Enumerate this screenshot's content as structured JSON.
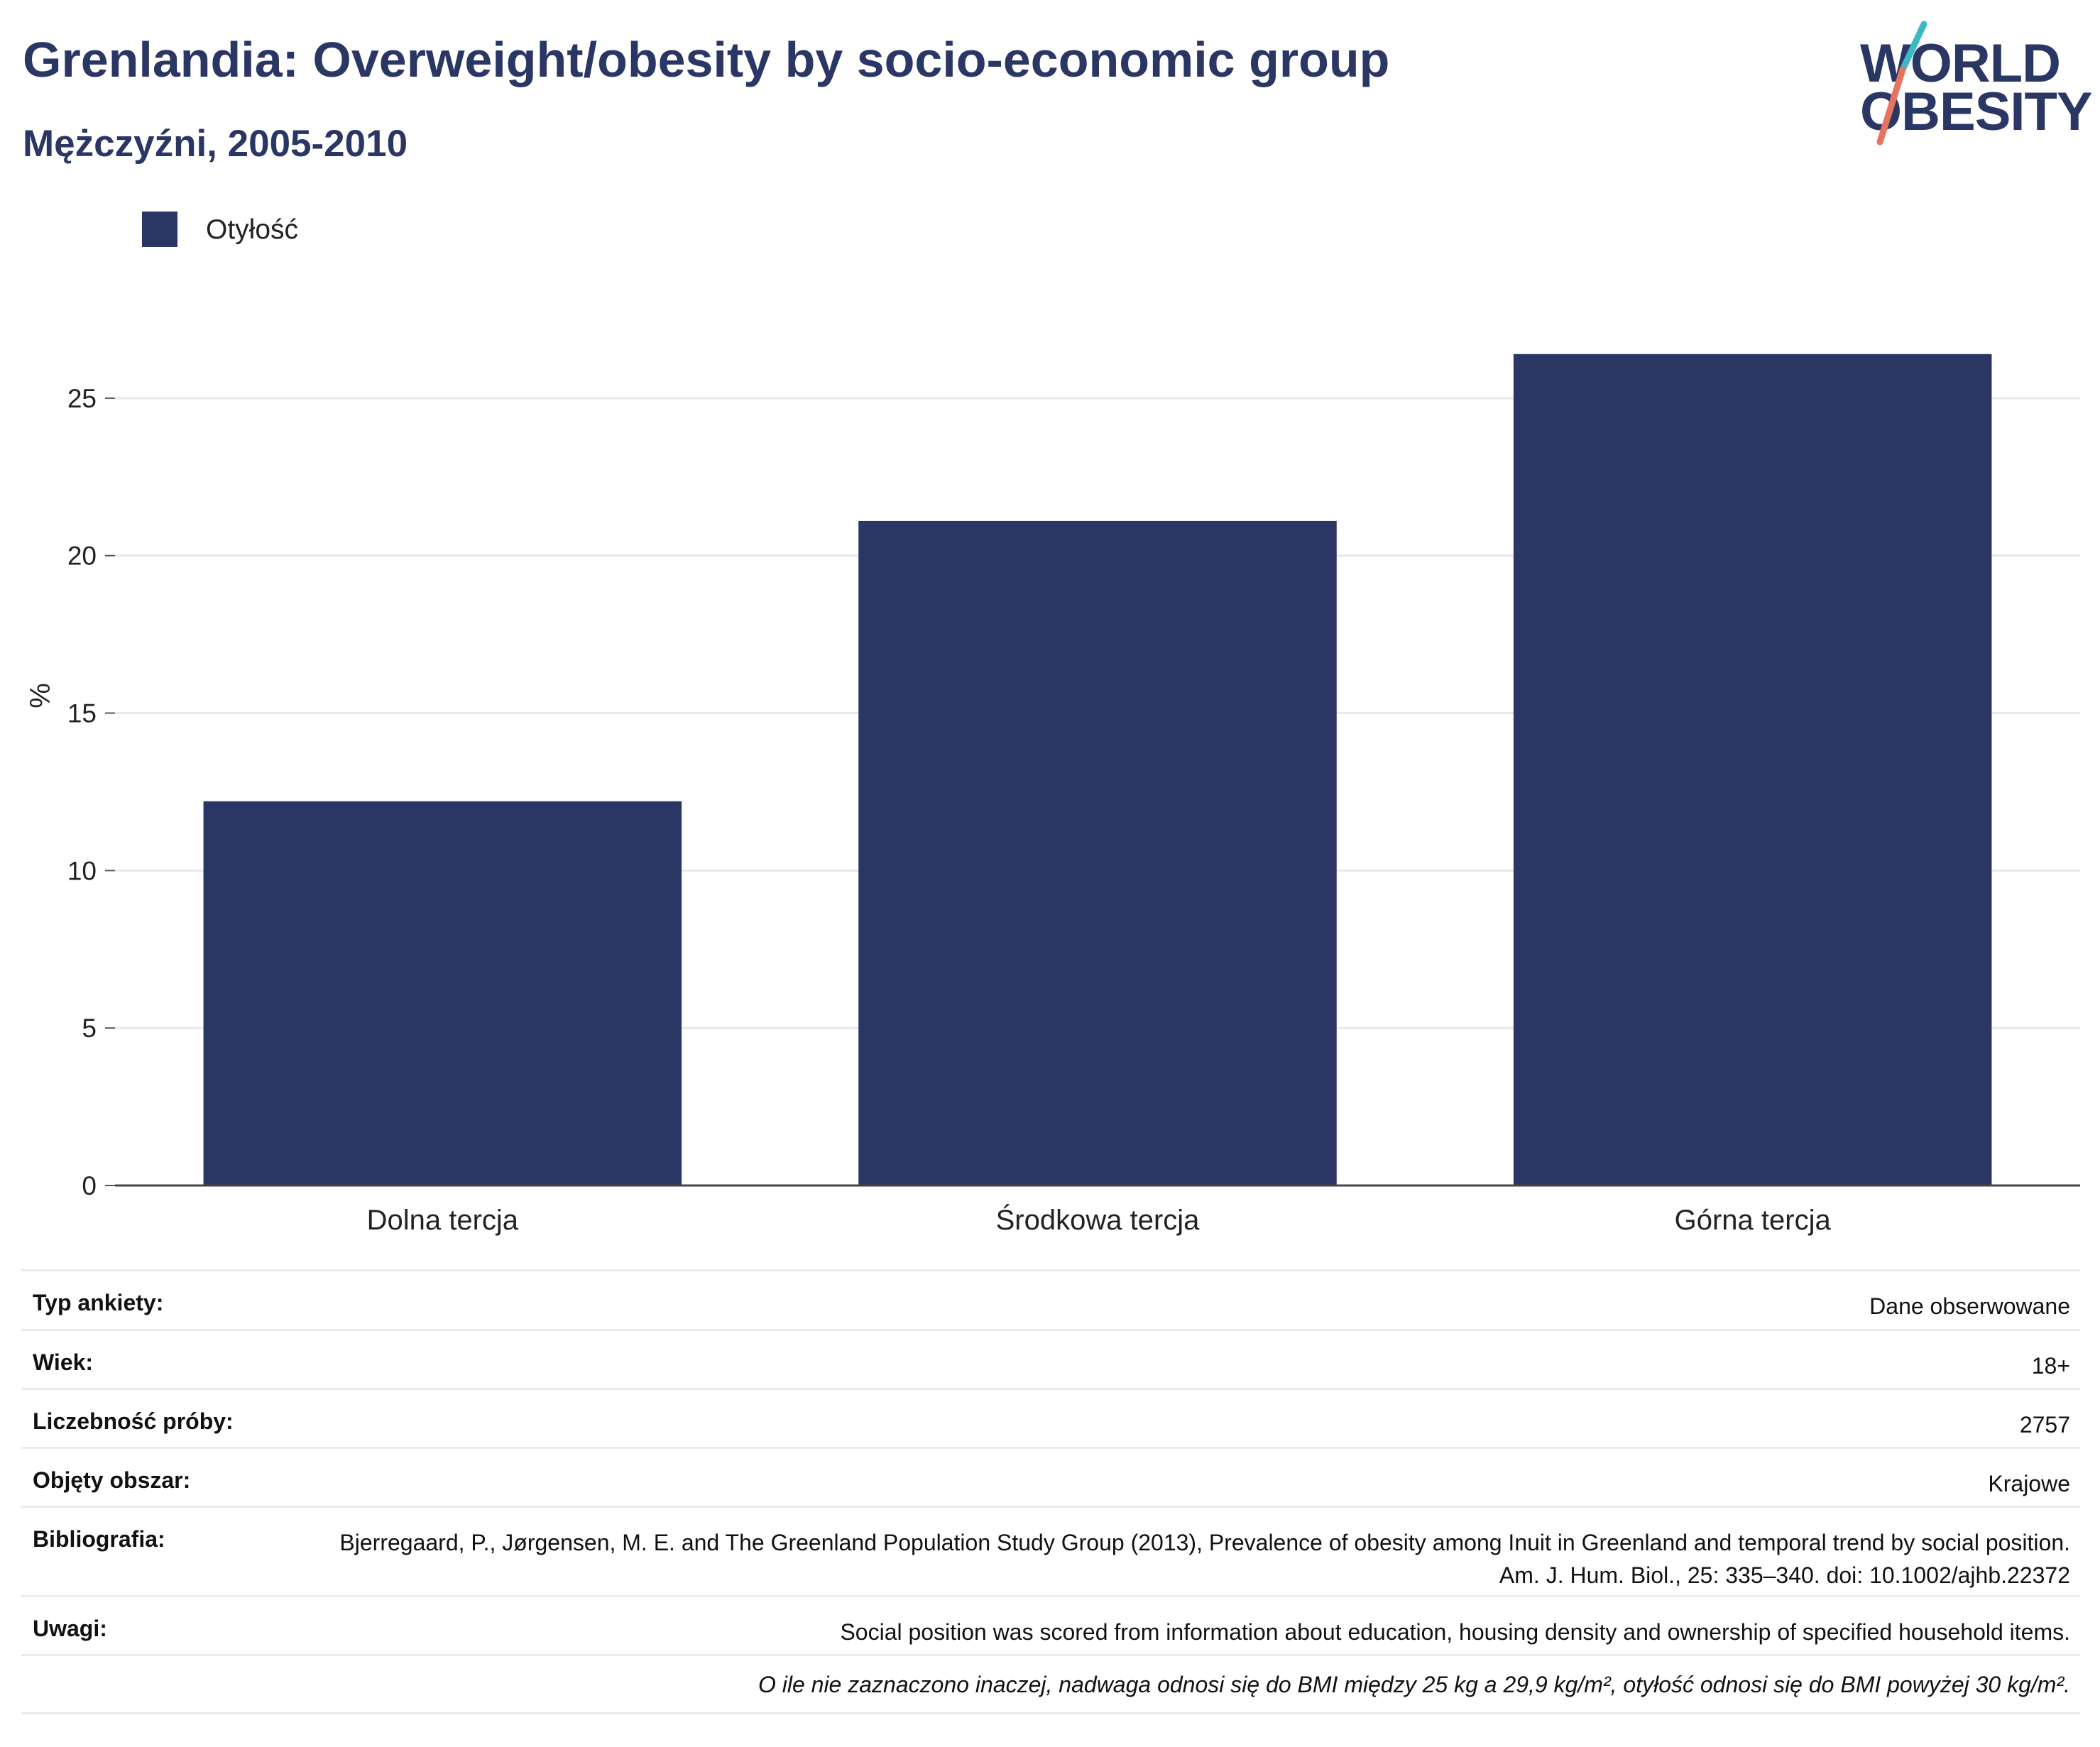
{
  "header": {
    "title": "Grenlandia: Overweight/obesity by socio-economic group",
    "subtitle": "Mężczyźni, 2005-2010"
  },
  "logo": {
    "line1": "WORLD",
    "line2": "OBESITY",
    "colors": {
      "text": "#2a3664",
      "slash_top": "#3bb8c4",
      "slash_bottom": "#e8745f"
    }
  },
  "legend": {
    "label": "Otyłość",
    "color": "#2a3664"
  },
  "chart_data": {
    "type": "bar",
    "categories": [
      "Dolna tercja",
      "Środkowa tercja",
      "Górna tercja"
    ],
    "series": [
      {
        "name": "Otyłość",
        "values": [
          12.2,
          21.1,
          26.4
        ],
        "color": "#2a3664"
      }
    ],
    "ylabel": "%",
    "xlabel": "",
    "ylim": [
      0,
      27.5
    ],
    "yticks": [
      0,
      5,
      10,
      15,
      20,
      25
    ],
    "grid": true,
    "legend_position": "top-left"
  },
  "meta": {
    "rows": [
      {
        "label": "Typ ankiety:",
        "value": "Dane obserwowane"
      },
      {
        "label": "Wiek:",
        "value": "18+"
      },
      {
        "label": "Liczebność próby:",
        "value": "2757"
      },
      {
        "label": "Objęty obszar:",
        "value": "Krajowe"
      },
      {
        "label": "Bibliografia:",
        "value": "Bjerregaard, P., Jørgensen, M. E. and The Greenland Population Study Group (2013), Prevalence of obesity among Inuit in Greenland and temporal trend by social position. Am. J. Hum. Biol., 25: 335–340. doi: 10.1002/ajhb.22372"
      },
      {
        "label": "Uwagi:",
        "value": "Social position was scored from information about education, housing density and ownership of specified household items."
      }
    ],
    "note": "O ile nie zaznaczono inaczej, nadwaga odnosi się do BMI między 25 kg a 29,9 kg/m², otyłość odnosi się do BMI powyżej 30 kg/m²."
  }
}
